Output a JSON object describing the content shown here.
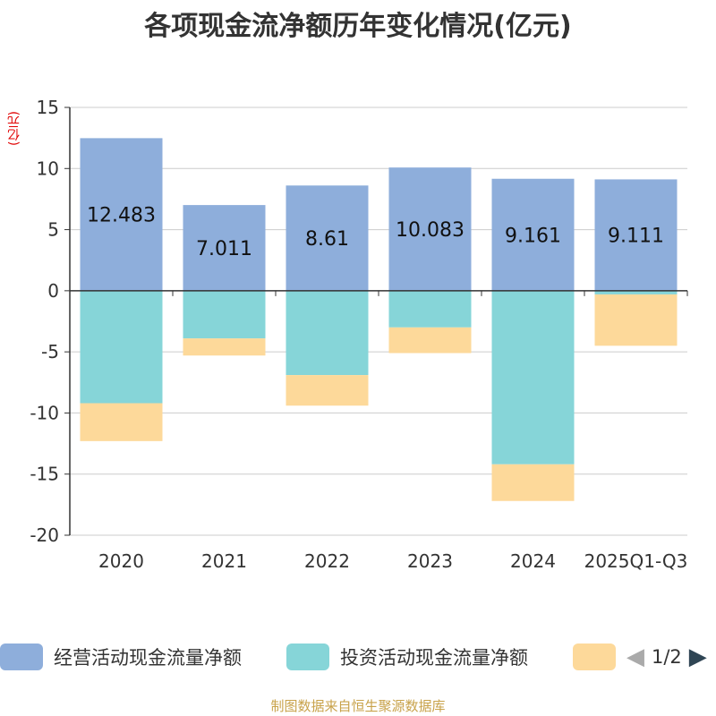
{
  "chart_data": {
    "type": "bar",
    "stacked": true,
    "title": "各项现金流净额历年变化情况(亿元)",
    "ylabel": "(亿元)",
    "ylim": [
      -20,
      15
    ],
    "yticks": [
      15,
      10,
      5,
      0,
      -5,
      -10,
      -15,
      -20
    ],
    "categories": [
      "2020",
      "2021",
      "2022",
      "2023",
      "2024",
      "2025Q1-Q3"
    ],
    "series": [
      {
        "name": "经营活动现金流量净额",
        "color": "#8eaedb",
        "values": [
          12.483,
          7.011,
          8.61,
          10.083,
          9.161,
          9.111
        ],
        "labels": [
          "12.483",
          "7.011",
          "8.61",
          "10.083",
          "9.161",
          "9.111"
        ]
      },
      {
        "name": "投资活动现金流量净额",
        "color": "#86d5d8",
        "values": [
          -9.2,
          -3.9,
          -6.9,
          -3.0,
          -14.2,
          -0.3
        ]
      },
      {
        "name": "",
        "color": "#fdd99a",
        "values": [
          -3.1,
          -1.4,
          -2.5,
          -2.1,
          -3.0,
          -4.2
        ]
      }
    ],
    "legend_position": "bottom",
    "grid": true
  },
  "legend": {
    "items": [
      {
        "label": "经营活动现金流量净额",
        "color": "#8eaedb"
      },
      {
        "label": "投资活动现金流量净额",
        "color": "#86d5d8"
      },
      {
        "label": "",
        "color": "#fdd99a"
      }
    ],
    "pager": "1/2",
    "prev_color": "#aaaaaa",
    "next_color": "#2f4554"
  },
  "footer": "制图数据来自恒生聚源数据库"
}
